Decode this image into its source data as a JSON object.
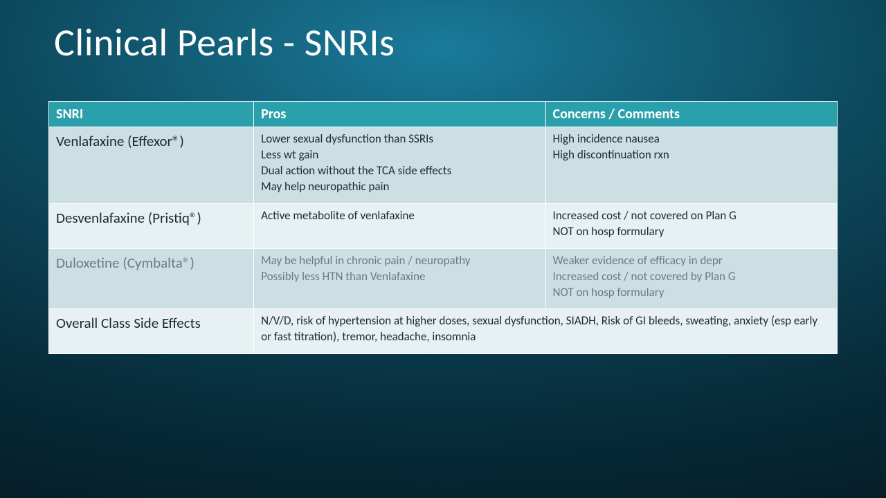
{
  "title": "Clinical Pearls - SNRIs",
  "table": {
    "headers": [
      "SNRI",
      "Pros",
      "Concerns / Comments"
    ],
    "rows": [
      {
        "drug": "Venlafaxine (Effexor®)",
        "pros": "Lower sexual dysfunction than SSRIs\nLess wt gain\nDual action without the TCA side effects\nMay help neuropathic pain",
        "cons": "High incidence nausea\nHigh discontinuation rxn"
      },
      {
        "drug": "Desvenlafaxine (Pristiq®)",
        "pros": "Active metabolite of venlafaxine",
        "cons": "Increased cost / not covered on Plan G\nNOT on hosp formulary"
      },
      {
        "drug": "Duloxetine (Cymbalta®)",
        "pros": "May be helpful in chronic pain / neuropathy\nPossibly less HTN than Venlafaxine",
        "cons": "Weaker evidence of efficacy in depr\nIncreased cost / not covered by Plan G\nNOT on hosp formulary"
      },
      {
        "drug": "Overall Class Side Effects",
        "merged": "N/V/D, risk of hypertension at higher doses, sexual dysfunction, SIADH, Risk of GI bleeds, sweating, anxiety (esp early or fast titration), tremor, headache, insomnia"
      }
    ]
  },
  "colors": {
    "header_bg": "#2aa0ac",
    "row_alt_a": "#ccdfe3",
    "row_alt_b": "#e7f0f2",
    "title_color": "#ffffff",
    "muted_text": "#6b7b82",
    "body_text": "#1a2b33"
  }
}
